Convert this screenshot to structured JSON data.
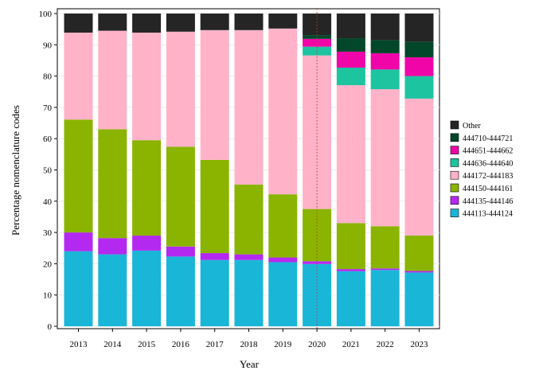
{
  "chart_data": {
    "type": "bar",
    "stacked": true,
    "title": "",
    "xlabel": "Year",
    "ylabel": "Percentage nomenclature codes",
    "ylim": [
      0,
      100
    ],
    "yticks": [
      0,
      10,
      20,
      30,
      40,
      50,
      60,
      70,
      80,
      90,
      100
    ],
    "grid": true,
    "legend_position": "right",
    "categories": [
      "2013",
      "2014",
      "2015",
      "2016",
      "2017",
      "2018",
      "2019",
      "2020",
      "2021",
      "2022",
      "2023"
    ],
    "reference_line": {
      "x": "2020",
      "style": "dotted",
      "color": "#c0392b"
    },
    "series": [
      {
        "name": "444113-444124",
        "color": "#1ab6d8",
        "values": [
          24.0,
          23.0,
          24.2,
          22.3,
          21.2,
          21.2,
          20.5,
          19.9,
          17.6,
          18.0,
          17.2
        ]
      },
      {
        "name": "444135-444146",
        "color": "#b429f0",
        "values": [
          6.0,
          5.2,
          4.8,
          3.2,
          2.2,
          1.8,
          1.5,
          0.9,
          0.7,
          0.5,
          0.5
        ]
      },
      {
        "name": "444150-444161",
        "color": "#8ab400",
        "values": [
          36.1,
          34.8,
          30.5,
          31.9,
          29.8,
          22.3,
          20.2,
          16.7,
          14.7,
          13.5,
          11.3
        ]
      },
      {
        "name": "444172-444183",
        "color": "#ffb2c8",
        "values": [
          27.8,
          31.5,
          34.4,
          36.8,
          41.5,
          49.4,
          53.0,
          49.1,
          44.1,
          43.8,
          43.8
        ]
      },
      {
        "name": "444636-444640",
        "color": "#1dc4a0",
        "values": [
          0,
          0,
          0,
          0,
          0,
          0,
          0,
          2.8,
          5.6,
          6.3,
          7.2
        ]
      },
      {
        "name": "444651-444662",
        "color": "#f006a8",
        "values": [
          0,
          0,
          0,
          0,
          0,
          0,
          0,
          2.5,
          5.1,
          5.2,
          6.0
        ]
      },
      {
        "name": "444710-444721",
        "color": "#03472a",
        "values": [
          0,
          0,
          0,
          0,
          0,
          0,
          0,
          1.2,
          4.3,
          4.2,
          5.0
        ]
      },
      {
        "name": "Other",
        "color": "#252525",
        "values": [
          6.1,
          5.5,
          6.1,
          5.8,
          5.3,
          5.3,
          4.8,
          6.9,
          7.9,
          8.5,
          9.0
        ]
      }
    ]
  }
}
